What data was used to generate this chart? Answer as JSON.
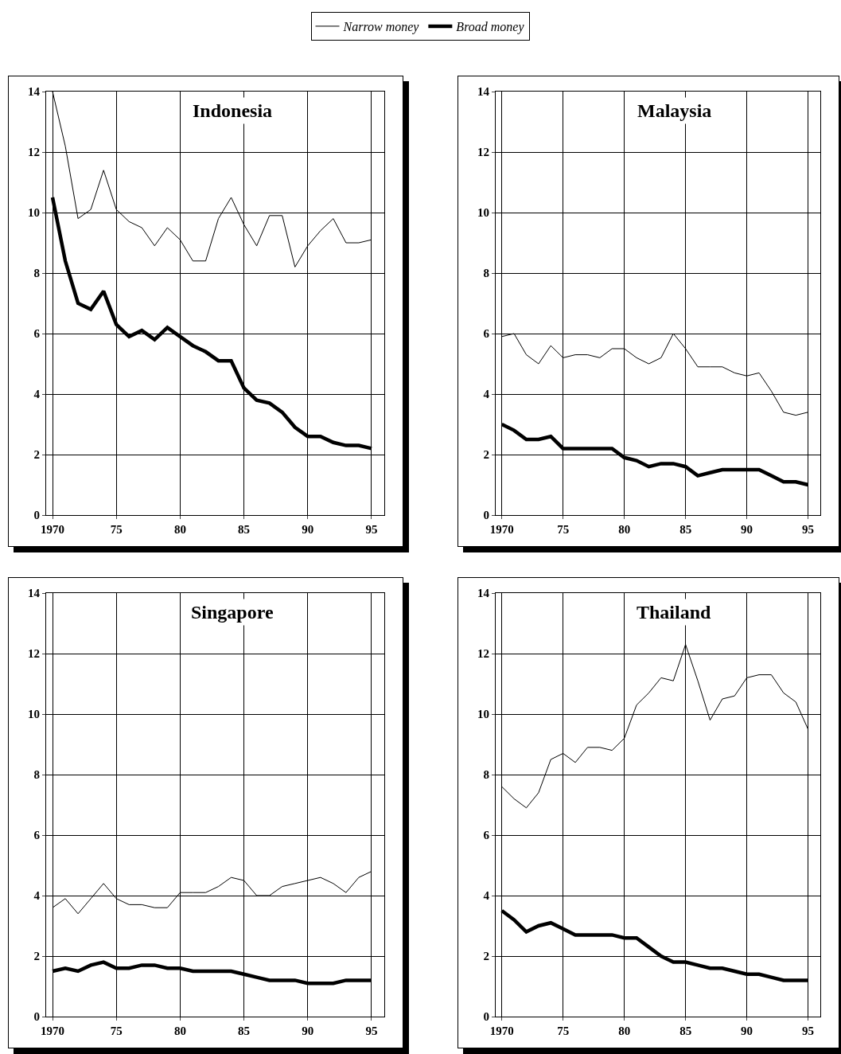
{
  "chart_data": [
    {
      "type": "line",
      "title": "Indonesia",
      "x": [
        1970,
        1971,
        1972,
        1973,
        1974,
        1975,
        1976,
        1977,
        1978,
        1979,
        1980,
        1981,
        1982,
        1983,
        1984,
        1985,
        1986,
        1987,
        1988,
        1989,
        1990,
        1991,
        1992,
        1993,
        1994,
        1995
      ],
      "legend": "top",
      "grid": true,
      "marker": "none",
      "xlim": [
        1969.5,
        1996
      ],
      "xticks": [
        {
          "value": 1970,
          "label": "1970"
        },
        {
          "value": 1975,
          "label": "75"
        },
        {
          "value": 1980,
          "label": "80"
        },
        {
          "value": 1985,
          "label": "85"
        },
        {
          "value": 1990,
          "label": "90"
        },
        {
          "value": 1995,
          "label": "95"
        }
      ],
      "ylim": [
        0,
        14
      ],
      "yticks": [
        0,
        2,
        4,
        6,
        8,
        10,
        12,
        14
      ],
      "series": [
        {
          "name": "Narrow money",
          "color": "#000000",
          "line_style": "solid",
          "values": [
            14.0,
            12.2,
            9.8,
            10.1,
            11.4,
            10.1,
            9.7,
            9.5,
            8.9,
            9.5,
            9.1,
            8.4,
            8.4,
            9.8,
            10.5,
            9.6,
            8.9,
            9.9,
            9.9,
            8.2,
            8.9,
            9.4,
            9.8,
            9.0,
            9.0,
            9.1
          ]
        },
        {
          "name": "Broad money",
          "color": "#000000",
          "line_style": "solid",
          "values": [
            10.5,
            8.4,
            7.0,
            6.8,
            7.4,
            6.3,
            5.9,
            6.1,
            5.8,
            6.2,
            5.9,
            5.6,
            5.4,
            5.1,
            5.1,
            4.2,
            3.8,
            3.7,
            3.4,
            2.9,
            2.6,
            2.6,
            2.4,
            2.3,
            2.3,
            2.2
          ]
        }
      ]
    },
    {
      "type": "line",
      "title": "Malaysia",
      "x": [
        1970,
        1971,
        1972,
        1973,
        1974,
        1975,
        1976,
        1977,
        1978,
        1979,
        1980,
        1981,
        1982,
        1983,
        1984,
        1985,
        1986,
        1987,
        1988,
        1989,
        1990,
        1991,
        1992,
        1993,
        1994,
        1995
      ],
      "grid": true,
      "marker": "none",
      "xlim": [
        1969.5,
        1996
      ],
      "xticks": [
        {
          "value": 1970,
          "label": "1970"
        },
        {
          "value": 1975,
          "label": "75"
        },
        {
          "value": 1980,
          "label": "80"
        },
        {
          "value": 1985,
          "label": "85"
        },
        {
          "value": 1990,
          "label": "90"
        },
        {
          "value": 1995,
          "label": "95"
        }
      ],
      "ylim": [
        0,
        14
      ],
      "yticks": [
        0,
        2,
        4,
        6,
        8,
        10,
        12,
        14
      ],
      "series": [
        {
          "color": "#000000",
          "line_style": "solid",
          "values": [
            5.9,
            6.0,
            5.3,
            5.0,
            5.6,
            5.2,
            5.3,
            5.3,
            5.2,
            5.5,
            5.5,
            5.2,
            5.0,
            5.2,
            6.0,
            5.5,
            4.9,
            4.9,
            4.9,
            4.7,
            4.6,
            4.7,
            4.1,
            3.4,
            3.3,
            3.4
          ]
        },
        {
          "color": "#000000",
          "line_style": "solid",
          "values": [
            3.0,
            2.8,
            2.5,
            2.5,
            2.6,
            2.2,
            2.2,
            2.2,
            2.2,
            2.2,
            1.9,
            1.8,
            1.6,
            1.7,
            1.7,
            1.6,
            1.3,
            1.4,
            1.5,
            1.5,
            1.5,
            1.5,
            1.3,
            1.1,
            1.1,
            1.0
          ]
        }
      ]
    },
    {
      "type": "line",
      "title": "Singapore",
      "x": [
        1970,
        1971,
        1972,
        1973,
        1974,
        1975,
        1976,
        1977,
        1978,
        1979,
        1980,
        1981,
        1982,
        1983,
        1984,
        1985,
        1986,
        1987,
        1988,
        1989,
        1990,
        1991,
        1992,
        1993,
        1994,
        1995
      ],
      "grid": true,
      "marker": "none",
      "xlim": [
        1969.5,
        1996
      ],
      "xticks": [
        {
          "value": 1970,
          "label": "1970"
        },
        {
          "value": 1975,
          "label": "75"
        },
        {
          "value": 1980,
          "label": "80"
        },
        {
          "value": 1985,
          "label": "85"
        },
        {
          "value": 1990,
          "label": "90"
        },
        {
          "value": 1995,
          "label": "95"
        }
      ],
      "ylim": [
        0,
        14
      ],
      "yticks": [
        0,
        2,
        4,
        6,
        8,
        10,
        12,
        14
      ],
      "series": [
        {
          "color": "#000000",
          "line_style": "solid",
          "values": [
            3.6,
            3.9,
            3.4,
            3.9,
            4.4,
            3.9,
            3.7,
            3.7,
            3.6,
            3.6,
            4.1,
            4.1,
            4.1,
            4.3,
            4.6,
            4.5,
            4.0,
            4.0,
            4.3,
            4.4,
            4.5,
            4.6,
            4.4,
            4.1,
            4.6,
            4.8
          ]
        },
        {
          "color": "#000000",
          "line_style": "solid",
          "values": [
            1.5,
            1.6,
            1.5,
            1.7,
            1.8,
            1.6,
            1.6,
            1.7,
            1.7,
            1.6,
            1.6,
            1.5,
            1.5,
            1.5,
            1.5,
            1.4,
            1.3,
            1.2,
            1.2,
            1.2,
            1.1,
            1.1,
            1.1,
            1.2,
            1.2,
            1.2
          ]
        }
      ]
    },
    {
      "type": "line",
      "title": "Thailand",
      "x": [
        1970,
        1971,
        1972,
        1973,
        1974,
        1975,
        1976,
        1977,
        1978,
        1979,
        1980,
        1981,
        1982,
        1983,
        1984,
        1985,
        1986,
        1987,
        1988,
        1989,
        1990,
        1991,
        1992,
        1993,
        1994,
        1995
      ],
      "grid": true,
      "marker": "none",
      "xlim": [
        1969.5,
        1996
      ],
      "xticks": [
        {
          "value": 1970,
          "label": "1970"
        },
        {
          "value": 1975,
          "label": "75"
        },
        {
          "value": 1980,
          "label": "80"
        },
        {
          "value": 1985,
          "label": "85"
        },
        {
          "value": 1990,
          "label": "90"
        },
        {
          "value": 1995,
          "label": "95"
        }
      ],
      "ylim": [
        0,
        14
      ],
      "yticks": [
        0,
        2,
        4,
        6,
        8,
        10,
        12,
        14
      ],
      "series": [
        {
          "color": "#000000",
          "line_style": "solid",
          "values": [
            7.6,
            7.2,
            6.9,
            7.4,
            8.5,
            8.7,
            8.4,
            8.9,
            8.9,
            8.8,
            9.2,
            10.3,
            10.7,
            11.2,
            11.1,
            12.3,
            11.1,
            9.8,
            10.5,
            10.6,
            11.2,
            11.3,
            11.3,
            10.7,
            10.4,
            9.5
          ]
        },
        {
          "color": "#000000",
          "line_style": "solid",
          "values": [
            3.5,
            3.2,
            2.8,
            3.0,
            3.1,
            2.9,
            2.7,
            2.7,
            2.7,
            2.7,
            2.6,
            2.6,
            2.3,
            2.0,
            1.8,
            1.8,
            1.7,
            1.6,
            1.6,
            1.5,
            1.4,
            1.4,
            1.3,
            1.2,
            1.2,
            1.2
          ]
        }
      ]
    }
  ]
}
